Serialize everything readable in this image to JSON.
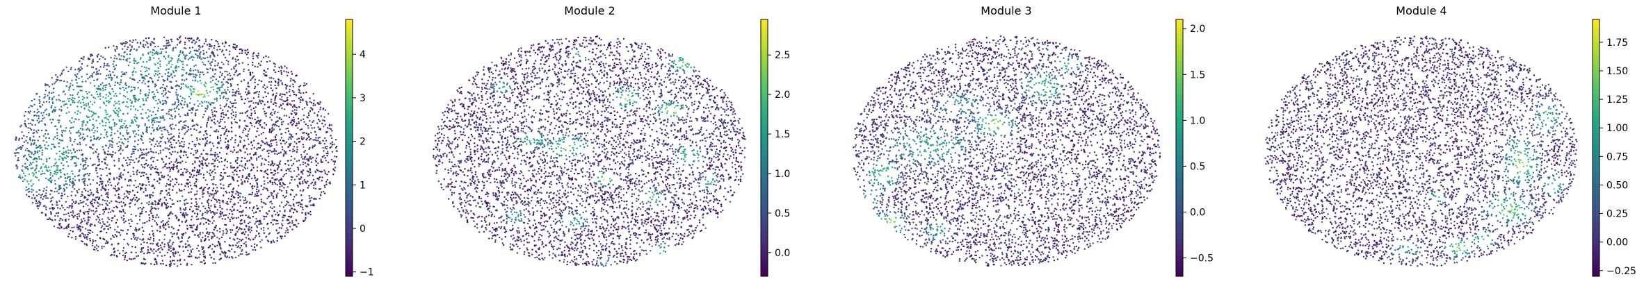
{
  "colormap": [
    "#440154",
    "#472c7a",
    "#3b518b",
    "#2c718e",
    "#21908d",
    "#27ad81",
    "#5cc863",
    "#aadc32",
    "#fde725"
  ],
  "chart_data": [
    {
      "type": "scatter",
      "title": "Module 1",
      "colorbar": {
        "range": [
          -1.1,
          4.8
        ],
        "ticks": [
          -1,
          0,
          1,
          2,
          3,
          4
        ],
        "tick_labels": [
          "−1",
          "0",
          "1",
          "2",
          "3",
          "4"
        ]
      },
      "hotspots": [
        {
          "cx": 0.58,
          "cy": 0.24,
          "rx": 0.08,
          "ry": 0.07,
          "v": 4.6
        },
        {
          "cx": 0.28,
          "cy": 0.32,
          "rx": 0.26,
          "ry": 0.18,
          "v": 3.0
        },
        {
          "cx": 0.12,
          "cy": 0.55,
          "rx": 0.12,
          "ry": 0.15,
          "v": 2.8
        },
        {
          "cx": 0.45,
          "cy": 0.12,
          "rx": 0.18,
          "ry": 0.08,
          "v": 3.2
        },
        {
          "cx": 0.05,
          "cy": 0.62,
          "rx": 0.04,
          "ry": 0.06,
          "v": 4.2
        }
      ]
    },
    {
      "type": "scatter",
      "title": "Module 2",
      "colorbar": {
        "range": [
          -0.3,
          2.95
        ],
        "ticks": [
          0.0,
          0.5,
          1.0,
          1.5,
          2.0,
          2.5
        ],
        "tick_labels": [
          "0.0",
          "0.5",
          "1.0",
          "1.5",
          "2.0",
          "2.5"
        ]
      },
      "hotspots": [
        {
          "cx": 0.43,
          "cy": 0.48,
          "rx": 0.07,
          "ry": 0.05,
          "v": 2.6
        },
        {
          "cx": 0.32,
          "cy": 0.45,
          "rx": 0.05,
          "ry": 0.04,
          "v": 2.2
        },
        {
          "cx": 0.62,
          "cy": 0.27,
          "rx": 0.05,
          "ry": 0.05,
          "v": 2.6
        },
        {
          "cx": 0.76,
          "cy": 0.32,
          "rx": 0.05,
          "ry": 0.04,
          "v": 2.8
        },
        {
          "cx": 0.82,
          "cy": 0.52,
          "rx": 0.05,
          "ry": 0.05,
          "v": 2.4
        },
        {
          "cx": 0.55,
          "cy": 0.62,
          "rx": 0.04,
          "ry": 0.03,
          "v": 2.8
        },
        {
          "cx": 0.7,
          "cy": 0.7,
          "rx": 0.04,
          "ry": 0.04,
          "v": 2.2
        },
        {
          "cx": 0.22,
          "cy": 0.22,
          "rx": 0.04,
          "ry": 0.04,
          "v": 1.8
        },
        {
          "cx": 0.26,
          "cy": 0.78,
          "rx": 0.04,
          "ry": 0.04,
          "v": 1.8
        },
        {
          "cx": 0.45,
          "cy": 0.8,
          "rx": 0.05,
          "ry": 0.04,
          "v": 2.0
        },
        {
          "cx": 0.47,
          "cy": 0.08,
          "rx": 0.03,
          "ry": 0.03,
          "v": 1.8
        },
        {
          "cx": 0.8,
          "cy": 0.12,
          "rx": 0.05,
          "ry": 0.04,
          "v": 2.5
        },
        {
          "cx": 0.72,
          "cy": 0.93,
          "rx": 0.03,
          "ry": 0.03,
          "v": 2.5
        },
        {
          "cx": 0.88,
          "cy": 0.63,
          "rx": 0.03,
          "ry": 0.04,
          "v": 2.2
        },
        {
          "cx": 0.15,
          "cy": 0.95,
          "rx": 0.03,
          "ry": 0.03,
          "v": 1.8
        },
        {
          "cx": 0.55,
          "cy": 0.98,
          "rx": 0.03,
          "ry": 0.02,
          "v": 2.0
        }
      ]
    },
    {
      "type": "scatter",
      "title": "Module 3",
      "colorbar": {
        "range": [
          -0.7,
          2.1
        ],
        "ticks": [
          -0.5,
          0.0,
          0.5,
          1.0,
          1.5,
          2.0
        ],
        "tick_labels": [
          "−0.5",
          "0.0",
          "0.5",
          "1.0",
          "1.5",
          "2.0"
        ]
      },
      "hotspots": [
        {
          "cx": 0.46,
          "cy": 0.38,
          "rx": 0.07,
          "ry": 0.06,
          "v": 2.0
        },
        {
          "cx": 0.62,
          "cy": 0.22,
          "rx": 0.07,
          "ry": 0.07,
          "v": 1.6
        },
        {
          "cx": 0.7,
          "cy": 0.12,
          "rx": 0.05,
          "ry": 0.04,
          "v": 1.5
        },
        {
          "cx": 0.25,
          "cy": 0.48,
          "rx": 0.16,
          "ry": 0.1,
          "v": 1.1
        },
        {
          "cx": 0.1,
          "cy": 0.6,
          "rx": 0.06,
          "ry": 0.07,
          "v": 1.6
        },
        {
          "cx": 0.12,
          "cy": 0.82,
          "rx": 0.06,
          "ry": 0.06,
          "v": 2.0
        },
        {
          "cx": 0.06,
          "cy": 0.7,
          "rx": 0.03,
          "ry": 0.04,
          "v": 1.8
        },
        {
          "cx": 0.35,
          "cy": 0.3,
          "rx": 0.1,
          "ry": 0.07,
          "v": 0.8
        },
        {
          "cx": 0.28,
          "cy": 0.85,
          "rx": 0.05,
          "ry": 0.05,
          "v": 1.2
        }
      ]
    },
    {
      "type": "scatter",
      "title": "Module 4",
      "colorbar": {
        "range": [
          -0.3,
          1.95
        ],
        "ticks": [
          -0.25,
          0.0,
          0.25,
          0.5,
          0.75,
          1.0,
          1.25,
          1.5,
          1.75
        ],
        "tick_labels": [
          "−0.25",
          "0.00",
          "0.25",
          "0.50",
          "0.75",
          "1.00",
          "1.25",
          "1.50",
          "1.75"
        ]
      },
      "hotspots": [
        {
          "cx": 0.82,
          "cy": 0.55,
          "rx": 0.06,
          "ry": 0.12,
          "v": 1.7
        },
        {
          "cx": 0.78,
          "cy": 0.75,
          "rx": 0.08,
          "ry": 0.07,
          "v": 1.8
        },
        {
          "cx": 0.9,
          "cy": 0.35,
          "rx": 0.05,
          "ry": 0.08,
          "v": 1.4
        },
        {
          "cx": 0.62,
          "cy": 0.92,
          "rx": 0.05,
          "ry": 0.04,
          "v": 1.8
        },
        {
          "cx": 0.7,
          "cy": 0.88,
          "rx": 0.04,
          "ry": 0.04,
          "v": 1.6
        },
        {
          "cx": 0.45,
          "cy": 0.92,
          "rx": 0.06,
          "ry": 0.05,
          "v": 1.1
        },
        {
          "cx": 0.92,
          "cy": 0.65,
          "rx": 0.04,
          "ry": 0.05,
          "v": 1.5
        },
        {
          "cx": 0.55,
          "cy": 0.7,
          "rx": 0.03,
          "ry": 0.03,
          "v": 1.4
        }
      ]
    }
  ]
}
